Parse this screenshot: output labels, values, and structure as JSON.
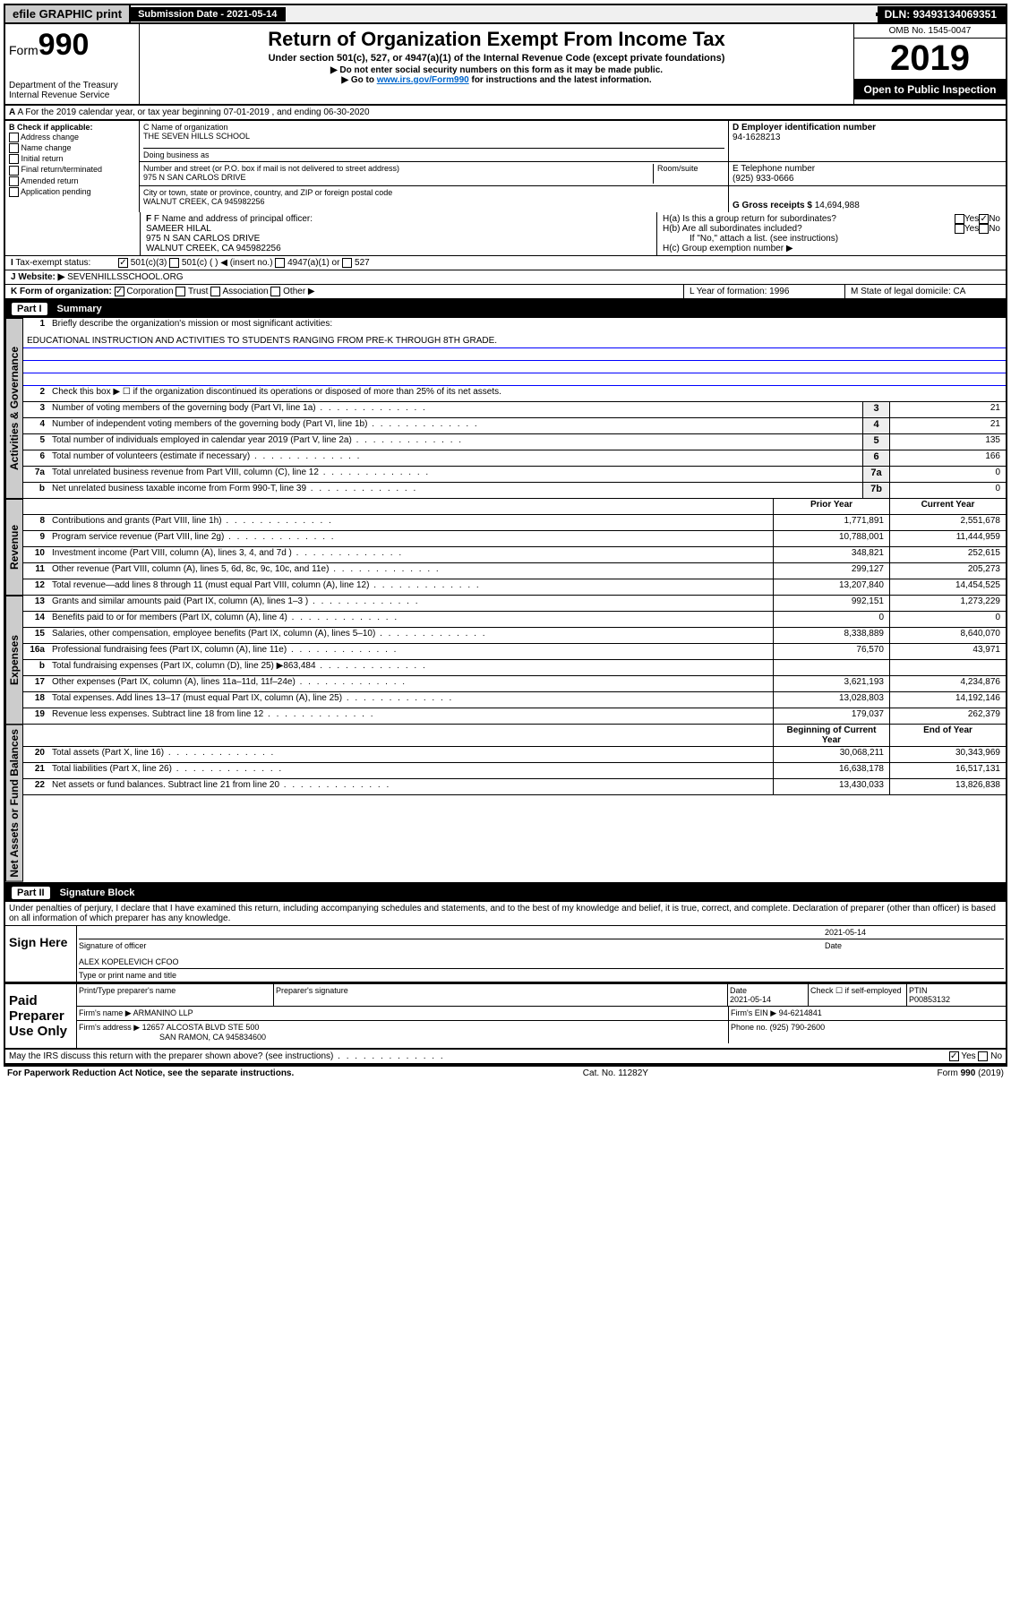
{
  "topbar": {
    "efile": "efile GRAPHIC print",
    "submission_label": "Submission Date - 2021-05-14",
    "dln": "DLN: 93493134069351"
  },
  "header": {
    "form_label": "Form",
    "form_num": "990",
    "dept": "Department of the Treasury\nInternal Revenue Service",
    "title": "Return of Organization Exempt From Income Tax",
    "subtitle": "Under section 501(c), 527, or 4947(a)(1) of the Internal Revenue Code (except private foundations)",
    "note1": "▶ Do not enter social security numbers on this form as it may be made public.",
    "note2_pre": "▶ Go to ",
    "note2_link": "www.irs.gov/Form990",
    "note2_post": " for instructions and the latest information.",
    "omb": "OMB No. 1545-0047",
    "year": "2019",
    "open": "Open to Public Inspection"
  },
  "lineA": "A For the 2019 calendar year, or tax year beginning 07-01-2019    , and ending 06-30-2020",
  "boxB": {
    "label": "B Check if applicable:",
    "opts": [
      "Address change",
      "Name change",
      "Initial return",
      "Final return/terminated",
      "Amended return",
      "Application pending"
    ]
  },
  "boxC": {
    "name_lbl": "C Name of organization",
    "name": "THE SEVEN HILLS SCHOOL",
    "dba_lbl": "Doing business as",
    "addr_lbl": "Number and street (or P.O. box if mail is not delivered to street address)",
    "room_lbl": "Room/suite",
    "addr": "975 N SAN CARLOS DRIVE",
    "city_lbl": "City or town, state or province, country, and ZIP or foreign postal code",
    "city": "WALNUT CREEK, CA  945982256"
  },
  "boxD": {
    "lbl": "D Employer identification number",
    "val": "94-1628213"
  },
  "boxE": {
    "lbl": "E Telephone number",
    "val": "(925) 933-0666"
  },
  "boxG": {
    "lbl": "G Gross receipts $",
    "val": "14,694,988"
  },
  "boxF": {
    "lbl": "F Name and address of principal officer:",
    "name": "SAMEER HILAL",
    "addr1": "975 N SAN CARLOS DRIVE",
    "addr2": "WALNUT CREEK, CA  945982256"
  },
  "boxH": {
    "a": "H(a)  Is this a group return for subordinates?",
    "b": "H(b)  Are all subordinates included?",
    "b2": "If \"No,\" attach a list. (see instructions)",
    "c": "H(c)  Group exemption number ▶"
  },
  "taxStatus": {
    "lbl": "Tax-exempt status:",
    "o1": "501(c)(3)",
    "o2": "501(c) (   ) ◀ (insert no.)",
    "o3": "4947(a)(1) or",
    "o4": "527"
  },
  "website": {
    "lbl": "J   Website: ▶",
    "val": "SEVENHILLSSCHOOL.ORG"
  },
  "lineK": {
    "lbl": "K Form of organization:",
    "opts": [
      "Corporation",
      "Trust",
      "Association",
      "Other ▶"
    ],
    "L": "L Year of formation: 1996",
    "M": "M State of legal domicile: CA"
  },
  "part1": {
    "num": "Part I",
    "title": "Summary"
  },
  "summary": {
    "q1": "Briefly describe the organization's mission or most significant activities:",
    "mission": "EDUCATIONAL INSTRUCTION AND ACTIVITIES TO STUDENTS RANGING FROM PRE-K THROUGH 8TH GRADE.",
    "q2": "Check this box ▶ ☐  if the organization discontinued its operations or disposed of more than 25% of its net assets.",
    "lines_single": [
      {
        "n": "3",
        "t": "Number of voting members of the governing body (Part VI, line 1a)",
        "b": "3",
        "v": "21"
      },
      {
        "n": "4",
        "t": "Number of independent voting members of the governing body (Part VI, line 1b)",
        "b": "4",
        "v": "21"
      },
      {
        "n": "5",
        "t": "Total number of individuals employed in calendar year 2019 (Part V, line 2a)",
        "b": "5",
        "v": "135"
      },
      {
        "n": "6",
        "t": "Total number of volunteers (estimate if necessary)",
        "b": "6",
        "v": "166"
      },
      {
        "n": "7a",
        "t": "Total unrelated business revenue from Part VIII, column (C), line 12",
        "b": "7a",
        "v": "0"
      },
      {
        "n": "b",
        "t": "Net unrelated business taxable income from Form 990-T, line 39",
        "b": "7b",
        "v": "0"
      }
    ],
    "col_prior": "Prior Year",
    "col_curr": "Current Year",
    "revenue": [
      {
        "n": "8",
        "t": "Contributions and grants (Part VIII, line 1h)",
        "p": "1,771,891",
        "c": "2,551,678"
      },
      {
        "n": "9",
        "t": "Program service revenue (Part VIII, line 2g)",
        "p": "10,788,001",
        "c": "11,444,959"
      },
      {
        "n": "10",
        "t": "Investment income (Part VIII, column (A), lines 3, 4, and 7d )",
        "p": "348,821",
        "c": "252,615"
      },
      {
        "n": "11",
        "t": "Other revenue (Part VIII, column (A), lines 5, 6d, 8c, 9c, 10c, and 11e)",
        "p": "299,127",
        "c": "205,273"
      },
      {
        "n": "12",
        "t": "Total revenue—add lines 8 through 11 (must equal Part VIII, column (A), line 12)",
        "p": "13,207,840",
        "c": "14,454,525"
      }
    ],
    "expenses": [
      {
        "n": "13",
        "t": "Grants and similar amounts paid (Part IX, column (A), lines 1–3 )",
        "p": "992,151",
        "c": "1,273,229"
      },
      {
        "n": "14",
        "t": "Benefits paid to or for members (Part IX, column (A), line 4)",
        "p": "0",
        "c": "0"
      },
      {
        "n": "15",
        "t": "Salaries, other compensation, employee benefits (Part IX, column (A), lines 5–10)",
        "p": "8,338,889",
        "c": "8,640,070"
      },
      {
        "n": "16a",
        "t": "Professional fundraising fees (Part IX, column (A), line 11e)",
        "p": "76,570",
        "c": "43,971"
      },
      {
        "n": "b",
        "t": "Total fundraising expenses (Part IX, column (D), line 25) ▶863,484",
        "p": "",
        "c": ""
      },
      {
        "n": "17",
        "t": "Other expenses (Part IX, column (A), lines 11a–11d, 11f–24e)",
        "p": "3,621,193",
        "c": "4,234,876"
      },
      {
        "n": "18",
        "t": "Total expenses. Add lines 13–17 (must equal Part IX, column (A), line 25)",
        "p": "13,028,803",
        "c": "14,192,146"
      },
      {
        "n": "19",
        "t": "Revenue less expenses. Subtract line 18 from line 12",
        "p": "179,037",
        "c": "262,379"
      }
    ],
    "col_begin": "Beginning of Current Year",
    "col_end": "End of Year",
    "netassets": [
      {
        "n": "20",
        "t": "Total assets (Part X, line 16)",
        "p": "30,068,211",
        "c": "30,343,969"
      },
      {
        "n": "21",
        "t": "Total liabilities (Part X, line 26)",
        "p": "16,638,178",
        "c": "16,517,131"
      },
      {
        "n": "22",
        "t": "Net assets or fund balances. Subtract line 21 from line 20",
        "p": "13,430,033",
        "c": "13,826,838"
      }
    ]
  },
  "vtabs": {
    "gov": "Activities & Governance",
    "rev": "Revenue",
    "exp": "Expenses",
    "net": "Net Assets or Fund Balances"
  },
  "part2": {
    "num": "Part II",
    "title": "Signature Block"
  },
  "perjury": "Under penalties of perjury, I declare that I have examined this return, including accompanying schedules and statements, and to the best of my knowledge and belief, it is true, correct, and complete. Declaration of preparer (other than officer) is based on all information of which preparer has any knowledge.",
  "sign": {
    "here": "Sign Here",
    "sig_lbl": "Signature of officer",
    "date": "2021-05-14",
    "date_lbl": "Date",
    "name": "ALEX KOPELEVICH  CFOO",
    "name_lbl": "Type or print name and title"
  },
  "paid": {
    "lbl": "Paid Preparer Use Only",
    "h1": "Print/Type preparer's name",
    "h2": "Preparer's signature",
    "h3": "Date",
    "h4": "Check ☐ if self-employed",
    "h5": "PTIN",
    "date": "2021-05-14",
    "ptin": "P00853132",
    "firm_lbl": "Firm's name    ▶",
    "firm": "ARMANINO LLP",
    "ein_lbl": "Firm's EIN ▶",
    "ein": "94-6214841",
    "addr_lbl": "Firm's address ▶",
    "addr1": "12657 ALCOSTA BLVD STE 500",
    "addr2": "SAN RAMON, CA  945834600",
    "phone_lbl": "Phone no.",
    "phone": "(925) 790-2600"
  },
  "discuss": "May the IRS discuss this return with the preparer shown above? (see instructions)",
  "footer": {
    "l": "For Paperwork Reduction Act Notice, see the separate instructions.",
    "c": "Cat. No. 11282Y",
    "r": "Form 990 (2019)"
  }
}
